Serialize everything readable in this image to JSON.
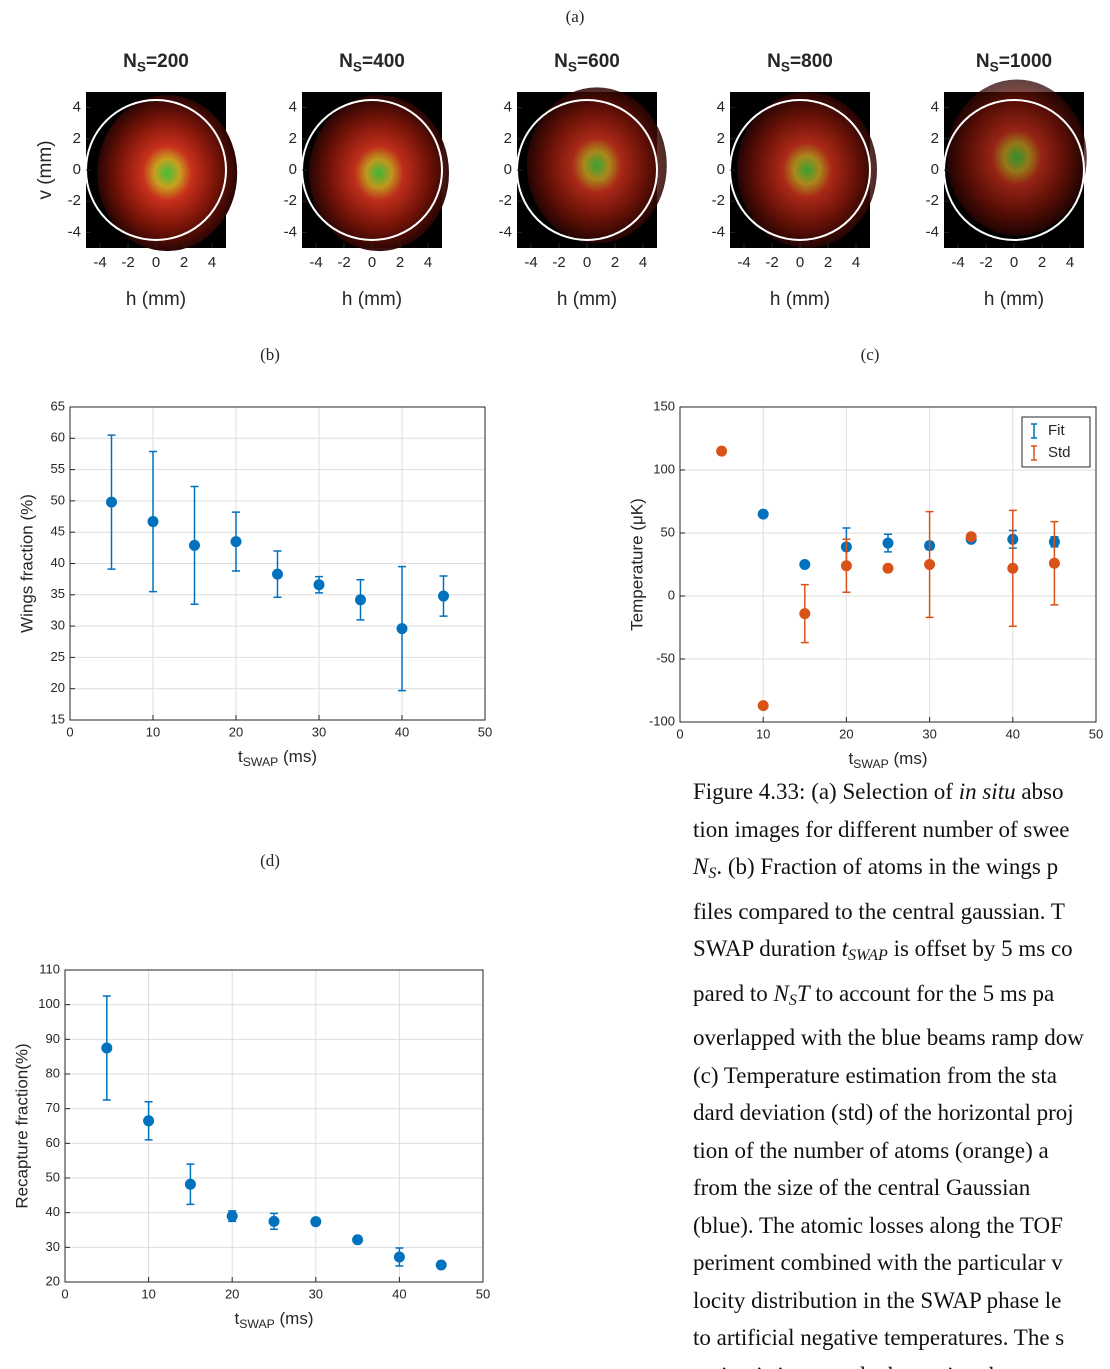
{
  "panel_labels": [
    "(a)",
    "(b)",
    "(c)",
    "(d)"
  ],
  "chart_data": [
    {
      "type": "image",
      "title": {
        "main": "N",
        "sub": "S",
        "rest": "=200"
      },
      "xlabel": "h (mm)",
      "ylabel": "v (mm)",
      "xlim": [
        -5,
        5
      ],
      "ylim": [
        -5,
        5
      ],
      "xticks": [
        -4,
        -2,
        0,
        2,
        4
      ],
      "yticks": [
        -4,
        -2,
        0,
        2,
        4
      ]
    },
    {
      "type": "image",
      "title": {
        "main": "N",
        "sub": "S",
        "rest": "=400"
      },
      "xlabel": "h (mm)",
      "xlim": [
        -5,
        5
      ],
      "ylim": [
        -5,
        5
      ],
      "xticks": [
        -4,
        -2,
        0,
        2,
        4
      ],
      "yticks": [
        -4,
        -2,
        0,
        2,
        4
      ]
    },
    {
      "type": "image",
      "title": {
        "main": "N",
        "sub": "S",
        "rest": "=600"
      },
      "xlabel": "h (mm)",
      "xlim": [
        -5,
        5
      ],
      "ylim": [
        -5,
        5
      ],
      "xticks": [
        -4,
        -2,
        0,
        2,
        4
      ],
      "yticks": [
        -4,
        -2,
        0,
        2,
        4
      ]
    },
    {
      "type": "image",
      "title": {
        "main": "N",
        "sub": "S",
        "rest": "=800"
      },
      "xlabel": "h (mm)",
      "xlim": [
        -5,
        5
      ],
      "ylim": [
        -5,
        5
      ],
      "xticks": [
        -4,
        -2,
        0,
        2,
        4
      ],
      "yticks": [
        -4,
        -2,
        0,
        2,
        4
      ]
    },
    {
      "type": "image",
      "title": {
        "main": "N",
        "sub": "S",
        "rest": "=1000"
      },
      "xlabel": "h (mm)",
      "xlim": [
        -5,
        5
      ],
      "ylim": [
        -5,
        5
      ],
      "xticks": [
        -4,
        -2,
        0,
        2,
        4
      ],
      "yticks": [
        -4,
        -2,
        0,
        2,
        4
      ]
    },
    {
      "type": "errorbar",
      "xlabel": {
        "main": "t",
        "sub": "SWAP",
        "rest": " (ms)"
      },
      "ylabel": "Wings fraction (%)",
      "xlim": [
        0,
        50
      ],
      "ylim": [
        15,
        65
      ],
      "xticks": [
        0,
        10,
        20,
        30,
        40,
        50
      ],
      "yticks": [
        15,
        20,
        25,
        30,
        35,
        40,
        45,
        50,
        55,
        60,
        65
      ],
      "grid": true,
      "series": [
        {
          "color": "#0072bd",
          "x": [
            5,
            10,
            15,
            20,
            25,
            30,
            35,
            40,
            45
          ],
          "values": [
            49.8,
            46.7,
            42.9,
            43.5,
            38.3,
            36.6,
            34.2,
            29.6,
            34.8
          ],
          "errors": [
            10.7,
            11.2,
            9.4,
            4.7,
            3.7,
            1.3,
            3.2,
            9.9,
            3.2
          ]
        }
      ]
    },
    {
      "type": "errorbar",
      "xlabel": {
        "main": "t",
        "sub": "SWAP",
        "rest": " (ms)"
      },
      "ylabel": "Temperature (μK)",
      "xlim": [
        0,
        50
      ],
      "ylim": [
        -100,
        150
      ],
      "xticks": [
        0,
        10,
        20,
        30,
        40,
        50
      ],
      "yticks": [
        -100,
        -50,
        0,
        50,
        100,
        150
      ],
      "grid": true,
      "legend": "northeast",
      "series": [
        {
          "name": "Fit",
          "color": "#0072bd",
          "x": [
            10,
            15,
            20,
            25,
            30,
            35,
            40,
            45
          ],
          "values": [
            65,
            25,
            39,
            42,
            40,
            45,
            45,
            43
          ],
          "errors": [
            1,
            1,
            15,
            7,
            3,
            2,
            7,
            4
          ]
        },
        {
          "name": "Std",
          "color": "#d95319",
          "x": [
            5,
            10,
            15,
            20,
            25,
            30,
            35,
            40,
            45
          ],
          "values": [
            115,
            -87,
            -14,
            24,
            22,
            25,
            47,
            22,
            26
          ],
          "errors": [
            1,
            1,
            23,
            21,
            2,
            42,
            2,
            46,
            33
          ]
        }
      ]
    },
    {
      "type": "errorbar",
      "xlabel": {
        "main": "t",
        "sub": "SWAP",
        "rest": " (ms)"
      },
      "ylabel": "Recapture fraction(%)",
      "xlim": [
        0,
        50
      ],
      "ylim": [
        20,
        110
      ],
      "xticks": [
        0,
        10,
        20,
        30,
        40,
        50
      ],
      "yticks": [
        20,
        30,
        40,
        50,
        60,
        70,
        80,
        90,
        100,
        110
      ],
      "grid": true,
      "series": [
        {
          "color": "#0072bd",
          "x": [
            5,
            10,
            15,
            20,
            25,
            30,
            35,
            40,
            45
          ],
          "values": [
            87.5,
            66.5,
            48.2,
            39,
            37.5,
            37.4,
            32.2,
            27.2,
            24.9
          ],
          "errors": [
            15,
            5.5,
            5.8,
            1.5,
            2.3,
            0.5,
            0.5,
            2.6,
            0.5
          ]
        }
      ]
    }
  ],
  "caption": {
    "lines": [
      [
        "Figure 4.33: (a) Selection of ",
        {
          "text": "in situ",
          "style": "italic"
        },
        " abso"
      ],
      [
        "tion images for different number of swee"
      ],
      [
        {
          "text": "N",
          "style": "italic"
        },
        {
          "text": "S",
          "style": "sub"
        },
        ". (b) Fraction of atoms in the wings p"
      ],
      [
        "files compared to the central gaussian. T"
      ],
      [
        "SWAP duration ",
        {
          "text": "t",
          "style": "italic"
        },
        {
          "text": "SWAP",
          "style": "sub"
        },
        " is offset by 5 ms co"
      ],
      [
        "pared to ",
        {
          "text": "N",
          "style": "italic"
        },
        {
          "text": "S",
          "style": "sub"
        },
        {
          "text": "T",
          "style": "italic"
        },
        " to account for the 5 ms pa"
      ],
      [
        "overlapped with the blue beams ramp dow"
      ],
      [
        "(c) Temperature estimation from the sta"
      ],
      [
        "dard deviation (std) of the horizontal proj"
      ],
      [
        "tion of the number of atoms (orange) a"
      ],
      [
        "from the size of the central Gaussian"
      ],
      [
        "(blue). The atomic losses along the TOF"
      ],
      [
        "periment combined with the particular v"
      ],
      [
        "locity distribution in the SWAP phase le"
      ],
      [
        "to artificial negative temperatures. The s"
      ],
      [
        "uation is improved when using the cross"
      ]
    ]
  }
}
